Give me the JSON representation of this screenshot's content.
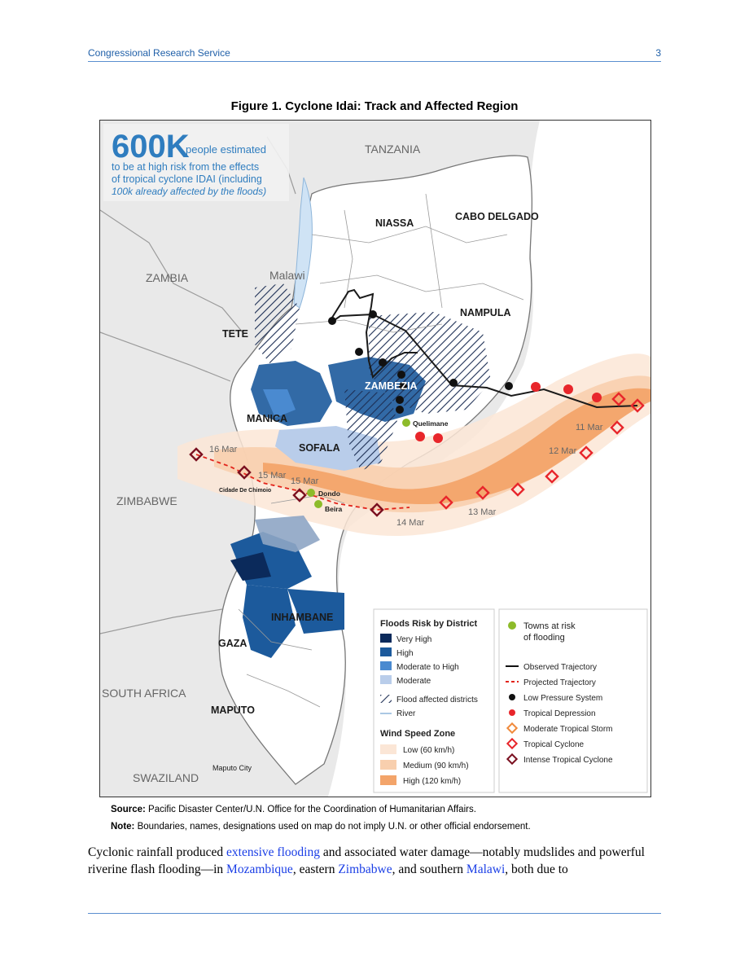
{
  "header": {
    "org": "Congressional Research Service",
    "page": "3"
  },
  "figure": {
    "title": "Figure 1. Cyclone Idai: Track and Affected Region",
    "map": {
      "headline": {
        "big": "600K",
        "line1": "people estimated",
        "line2": "to be at high risk from the effects",
        "line3": "of tropical cyclone IDAI (including",
        "line4": "100k already affected by the floods)"
      },
      "countries": [
        "TANZANIA",
        "ZAMBIA",
        "Malawi",
        "ZIMBABWE",
        "SOUTH AFRICA",
        "SWAZILAND"
      ],
      "provinces": [
        "NIASSA",
        "CABO DELGADO",
        "NAMPULA",
        "TETE",
        "ZAMBEZIA",
        "MANICA",
        "SOFALA",
        "INHAMBANE",
        "GAZA",
        "MAPUTO"
      ],
      "towns": [
        "Quelimane",
        "Dondo",
        "Beira"
      ],
      "places": [
        "Cidade De Chimoio",
        "Maputo City"
      ],
      "dates": [
        "16 Mar",
        "15 Mar",
        "15 Mar",
        "14 Mar",
        "13 Mar",
        "12 Mar",
        "11 Mar"
      ],
      "legend": {
        "flood_title": "Floods Risk by District",
        "flood_items": [
          {
            "label": "Very High",
            "color": "#0b2a5b"
          },
          {
            "label": "High",
            "color": "#1c5a9c"
          },
          {
            "label": "Moderate to High",
            "color": "#4a8ad0"
          },
          {
            "label": "Moderate",
            "color": "#b9cdea"
          }
        ],
        "flood_affected": "Flood affected districts",
        "river": "River",
        "wind_title": "Wind Speed Zone",
        "wind_items": [
          {
            "label": "Low (60 km/h)",
            "color": "#fbe6d6"
          },
          {
            "label": "Medium (90 km/h)",
            "color": "#f8cfae"
          },
          {
            "label": "High (120 km/h)",
            "color": "#f3a46a"
          }
        ],
        "towns_risk_line1": "Towns at risk",
        "towns_risk_line2": "of flooding",
        "track_items": [
          "Observed Trajectory",
          "Projected Trajectory",
          "Low Pressure System",
          "Tropical Depression",
          "Moderate Tropical Storm",
          "Tropical Cyclone",
          "Intense Tropical Cyclone"
        ]
      }
    }
  },
  "source": {
    "label": "Source:",
    "text": " Pacific Disaster Center/U.N. Office for the Coordination of Humanitarian Affairs."
  },
  "note": {
    "label": "Note:",
    "text": " Boundaries, names, designations used on map do not imply U.N. or other official endorsement."
  },
  "body": {
    "t1": "Cyclonic rainfall produced ",
    "l1": "extensive flooding",
    "t2": " and associated water damage—notably mudslides and powerful riverine flash flooding—in ",
    "l2": "Mozambique",
    "t3": ", eastern ",
    "l3": "Zimbabwe",
    "t4": ", and southern ",
    "l4": "Malawi",
    "t5": ", both due to"
  }
}
